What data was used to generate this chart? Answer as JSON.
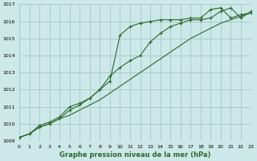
{
  "bg_color": "#cce8e8",
  "grid_color": "#aacccc",
  "line_color": "#2d6a2d",
  "title": "Graphe pression niveau de la mer (hPa)",
  "xlim": [
    0,
    23
  ],
  "ylim": [
    1009,
    1017
  ],
  "xticks": [
    0,
    1,
    2,
    3,
    4,
    5,
    6,
    7,
    8,
    9,
    10,
    11,
    12,
    13,
    14,
    15,
    16,
    17,
    18,
    19,
    20,
    21,
    22,
    23
  ],
  "yticks": [
    1009,
    1010,
    1011,
    1012,
    1013,
    1014,
    1015,
    1016,
    1017
  ],
  "series1_x": [
    0,
    1,
    2,
    3,
    4,
    5,
    6,
    7,
    8,
    9,
    10,
    11,
    12,
    13,
    14,
    15,
    16,
    17,
    18,
    19,
    20,
    21,
    22,
    23
  ],
  "series1_y": [
    1009.2,
    1009.4,
    1009.8,
    1010.0,
    1010.3,
    1010.5,
    1010.8,
    1011.1,
    1011.4,
    1011.8,
    1012.2,
    1012.6,
    1013.0,
    1013.4,
    1013.8,
    1014.2,
    1014.6,
    1015.0,
    1015.3,
    1015.6,
    1015.9,
    1016.1,
    1016.3,
    1016.5
  ],
  "series2_x": [
    0,
    1,
    2,
    3,
    4,
    5,
    6,
    7,
    8,
    9,
    10,
    11,
    12,
    13,
    14,
    15,
    16,
    17,
    18,
    19,
    20,
    21,
    22,
    23
  ],
  "series2_y": [
    1009.2,
    1009.4,
    1009.8,
    1010.0,
    1010.3,
    1010.8,
    1011.1,
    1011.5,
    1012.0,
    1012.8,
    1013.3,
    1013.7,
    1014.0,
    1014.8,
    1015.3,
    1015.7,
    1015.9,
    1016.1,
    1016.1,
    1016.2,
    1016.6,
    1016.8,
    1016.2,
    1016.6
  ],
  "series3_x": [
    0,
    1,
    2,
    3,
    4,
    5,
    6,
    7,
    8,
    9,
    10,
    11,
    12,
    13,
    14,
    15,
    16,
    17,
    18,
    19,
    20,
    21,
    22,
    23
  ],
  "series3_y": [
    1009.2,
    1009.4,
    1009.9,
    1010.1,
    1010.4,
    1011.0,
    1011.2,
    1011.5,
    1012.0,
    1012.5,
    1015.2,
    1015.7,
    1015.9,
    1016.0,
    1016.1,
    1016.1,
    1016.1,
    1016.2,
    1016.2,
    1016.7,
    1016.8,
    1016.2,
    1016.4,
    1016.5
  ]
}
